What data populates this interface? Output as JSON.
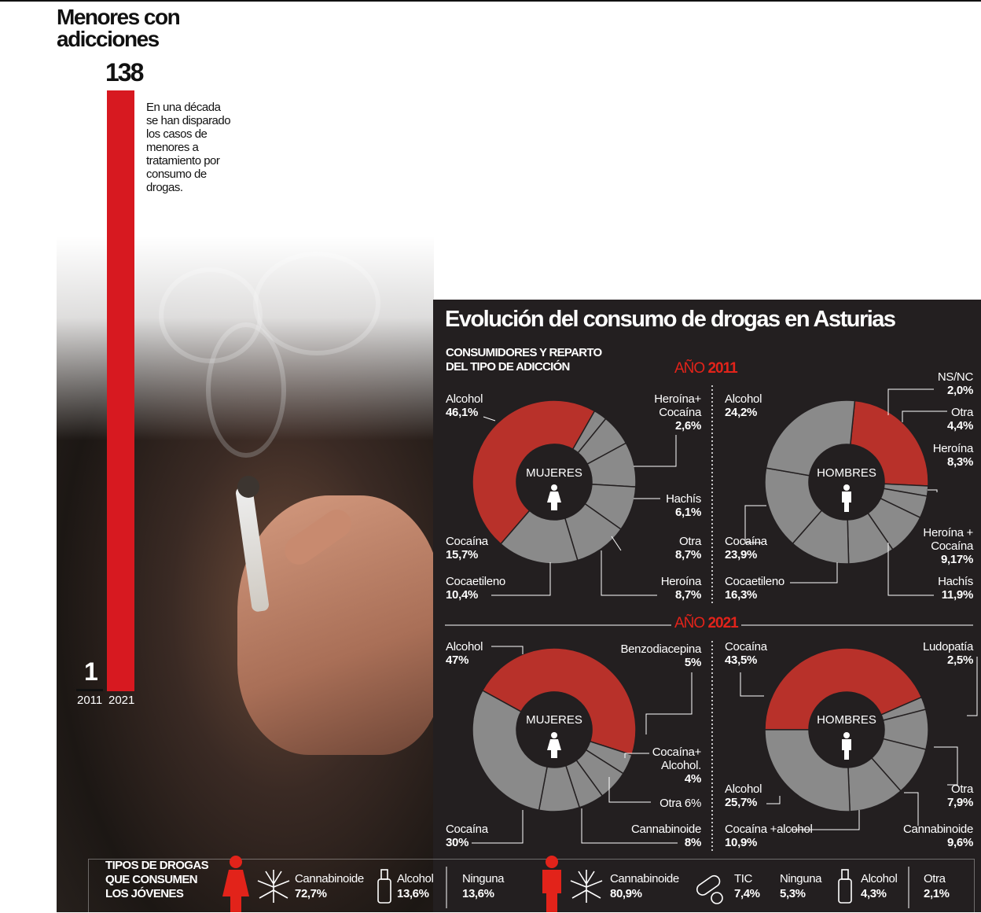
{
  "left": {
    "title_l1": "Menores con",
    "title_l2": "adicciones",
    "value_2021": "138",
    "value_2011": "1",
    "year_2011": "2011",
    "year_2021": "2021",
    "note": "En una década se han disparado los casos de menores a tratamiento por consumo de drogas."
  },
  "panel": {
    "title": "Evolución del consumo de drogas en Asturias",
    "subhead_l1": "CONSUMIDORES Y REPARTO",
    "subhead_l2": "DEL TIPO DE ADICCIÓN",
    "year_prefix": "AÑO",
    "year_a": "2011",
    "year_b": "2021",
    "center_women": "MUJERES",
    "center_men": "HOMBRES"
  },
  "chart_data": [
    {
      "type": "pie",
      "title": "MUJERES 2011",
      "categories": [
        "Alcohol",
        "Heroína+ Cocaína",
        "Hachís",
        "Otra",
        "Heroína",
        "Cocaetileno",
        "Cocaína"
      ],
      "values": [
        46.1,
        2.6,
        6.1,
        8.7,
        8.7,
        10.4,
        15.7
      ],
      "labels": [
        "46,1%",
        "2,6%",
        "6,1%",
        "8,7%",
        "8,7%",
        "10,4%",
        "15,7%"
      ],
      "highlight": "Alcohol",
      "colors": {
        "highlight": "#b8312a",
        "other": "#8a8a8a"
      }
    },
    {
      "type": "pie",
      "title": "HOMBRES 2011",
      "categories": [
        "Alcohol",
        "NS/NC",
        "Otra",
        "Heroína",
        "Heroína + Cocaína",
        "Hachís",
        "Cocaetileno",
        "Cocaína"
      ],
      "values": [
        24.2,
        2.0,
        4.4,
        8.3,
        9.17,
        11.9,
        16.3,
        23.9
      ],
      "labels": [
        "24,2%",
        "2,0%",
        "4,4%",
        "8,3%",
        "9,17%",
        "11,9%",
        "16,3%",
        "23,9%"
      ],
      "highlight": "Alcohol"
    },
    {
      "type": "pie",
      "title": "MUJERES 2021",
      "categories": [
        "Alcohol",
        "Cocaína+ Alcohol.",
        "Otra",
        "Benzodiacepina",
        "Cannabinoide",
        "Cocaína"
      ],
      "values": [
        47,
        4,
        6,
        5,
        8,
        30
      ],
      "labels": [
        "47%",
        "4%",
        "6%",
        "5%",
        "8%",
        "30%"
      ],
      "highlight": "Alcohol"
    },
    {
      "type": "pie",
      "title": "HOMBRES 2021",
      "categories": [
        "Cocaína",
        "Ludopatía",
        "Otra",
        "Cannabinoide",
        "Cocaína +alcohol",
        "Alcohol"
      ],
      "values": [
        43.5,
        2.5,
        7.9,
        9.6,
        10.9,
        25.7
      ],
      "labels": [
        "43,5%",
        "2,5%",
        "7,9%",
        "9,6%",
        "10,9%",
        "25,7%"
      ],
      "highlight": "Cocaína"
    },
    {
      "type": "bar",
      "title": "Menores con adicciones",
      "categories": [
        "2011",
        "2021"
      ],
      "values": [
        1,
        138
      ]
    }
  ],
  "labels": {
    "w11_alcohol_n": "Alcohol",
    "w11_alcohol_v": "46,1%",
    "w11_hc_n1": "Heroína+",
    "w11_hc_n2": "Cocaína",
    "w11_hc_v": "2,6%",
    "w11_hachis_n": "Hachís",
    "w11_hachis_v": "6,1%",
    "w11_otra_n": "Otra",
    "w11_otra_v": "8,7%",
    "w11_heroina_n": "Heroína",
    "w11_heroina_v": "8,7%",
    "w11_cocaet_n": "Cocaetileno",
    "w11_cocaet_v": "10,4%",
    "w11_cocaina_n": "Cocaína",
    "w11_cocaina_v": "15,7%",
    "m11_alcohol_n": "Alcohol",
    "m11_alcohol_v": "24,2%",
    "m11_nsnc_n": "NS/NC",
    "m11_nsnc_v": "2,0%",
    "m11_otra_n": "Otra",
    "m11_otra_v": "4,4%",
    "m11_heroina_n": "Heroína",
    "m11_heroina_v": "8,3%",
    "m11_hc_n1": "Heroína +",
    "m11_hc_n2": "Cocaína",
    "m11_hc_v": "9,17%",
    "m11_hachis_n": "Hachís",
    "m11_hachis_v": "11,9%",
    "m11_cocaet_n": "Cocaetileno",
    "m11_cocaet_v": "16,3%",
    "m11_cocaina_n": "Cocaína",
    "m11_cocaina_v": "23,9%",
    "w21_alcohol_n": "Alcohol",
    "w21_alcohol_v": "47%",
    "w21_benzo_n": "Benzodiacepina",
    "w21_benzo_v": "5%",
    "w21_ca_n1": "Cocaína+",
    "w21_ca_n2": "Alcohol.",
    "w21_ca_v": "4%",
    "w21_otra": "Otra 6%",
    "w21_cann_n": "Cannabinoide",
    "w21_cann_v": "8%",
    "w21_cocaina_n": "Cocaína",
    "w21_cocaina_v": "30%",
    "m21_cocaina_n": "Cocaína",
    "m21_cocaina_v": "43,5%",
    "m21_ludo_n": "Ludopatía",
    "m21_ludo_v": "2,5%",
    "m21_otra_n": "Otra",
    "m21_otra_v": "7,9%",
    "m21_cann_n": "Cannabinoide",
    "m21_cann_v": "9,6%",
    "m21_ca_n": "Cocaína +alcohol",
    "m21_ca_v": "10,9%",
    "m21_alcohol_n": "Alcohol",
    "m21_alcohol_v": "25,7%"
  },
  "legend": {
    "title_l1": "TIPOS DE DROGAS",
    "title_l2": "QUE CONSUMEN",
    "title_l3": "LOS JÓVENES",
    "girls": [
      {
        "name": "Cannabinoide",
        "value": "72,7%",
        "icon": "cannabis-leaf-icon"
      },
      {
        "name": "Alcohol",
        "value": "13,6%",
        "icon": "bottle-icon"
      },
      {
        "name": "Ninguna",
        "value": "13,6%"
      }
    ],
    "boys": [
      {
        "name": "Cannabinoide",
        "value": "80,9%",
        "icon": "cannabis-leaf-icon"
      },
      {
        "name": "TIC",
        "value": "7,4%",
        "icon": "pills-icon"
      },
      {
        "name": "Ninguna",
        "value": "5,3%"
      },
      {
        "name": "Alcohol",
        "value": "4,3%",
        "icon": "bottle-icon"
      },
      {
        "name": "Otra",
        "value": "2,1%"
      }
    ]
  }
}
